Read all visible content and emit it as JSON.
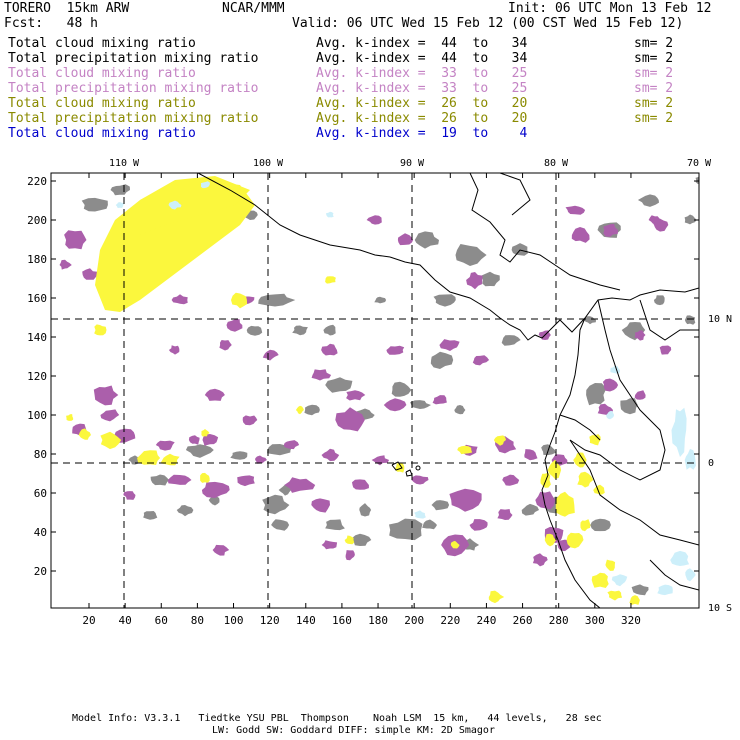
{
  "header": {
    "model": "TORERO  15km ARW",
    "org": "NCAR/MMM",
    "init": "Init: 06 UTC Mon 13 Feb 12",
    "fcst": "Fcst:   48 h",
    "valid": "Valid: 06 UTC Wed 15 Feb 12 (00 CST Wed 15 Feb 12)"
  },
  "legend": [
    {
      "name": "Total cloud mixing ratio",
      "kindex": "Avg. k-index =  44  to   34",
      "sm": "sm= 2",
      "color": "#000000"
    },
    {
      "name": "Total precipitation mixing ratio",
      "kindex": "Avg. k-index =  44  to   34",
      "sm": "sm= 2",
      "color": "#000000"
    },
    {
      "name": "Total cloud mixing ratio",
      "kindex": "Avg. k-index =  33  to   25",
      "sm": "sm= 2",
      "color": "#c483c4"
    },
    {
      "name": "Total precipitation mixing ratio",
      "kindex": "Avg. k-index =  33  to   25",
      "sm": "sm= 2",
      "color": "#c483c4"
    },
    {
      "name": "Total cloud mixing ratio",
      "kindex": "Avg. k-index =  26  to   20",
      "sm": "sm= 2",
      "color": "#8a8a00"
    },
    {
      "name": "Total precipitation mixing ratio",
      "kindex": "Avg. k-index =  26  to   20",
      "sm": "sm= 2",
      "color": "#8a8a00"
    },
    {
      "name": "Total cloud mixing ratio",
      "kindex": "Avg. k-index =  19  to    4",
      "sm": "",
      "color": "#0000cc"
    }
  ],
  "map": {
    "lon_labels": [
      "110 W",
      "100 W",
      "90 W",
      "80 W",
      "70 W"
    ],
    "lat_labels": [
      "10 N",
      "0",
      "10 S"
    ],
    "x_ticks": [
      "20",
      "40",
      "60",
      "80",
      "100",
      "120",
      "140",
      "160",
      "180",
      "200",
      "220",
      "240",
      "260",
      "280",
      "300",
      "320"
    ],
    "y_ticks": [
      "220",
      "200",
      "180",
      "160",
      "140",
      "120",
      "100",
      "80",
      "60",
      "40",
      "20"
    ],
    "colors": {
      "gray": "#8c8c8c",
      "purple": "#ab5fab",
      "yellow": "#fbf73d",
      "cyan": "#cdeffa"
    }
  },
  "footer": {
    "line1": "Model Info: V3.3.1   Tiedtke YSU PBL  Thompson    Noah LSM  15 km,   44 levels,   28 sec",
    "line2": "LW: Godd SW: Goddard DIFF: simple KM: 2D Smagor"
  }
}
